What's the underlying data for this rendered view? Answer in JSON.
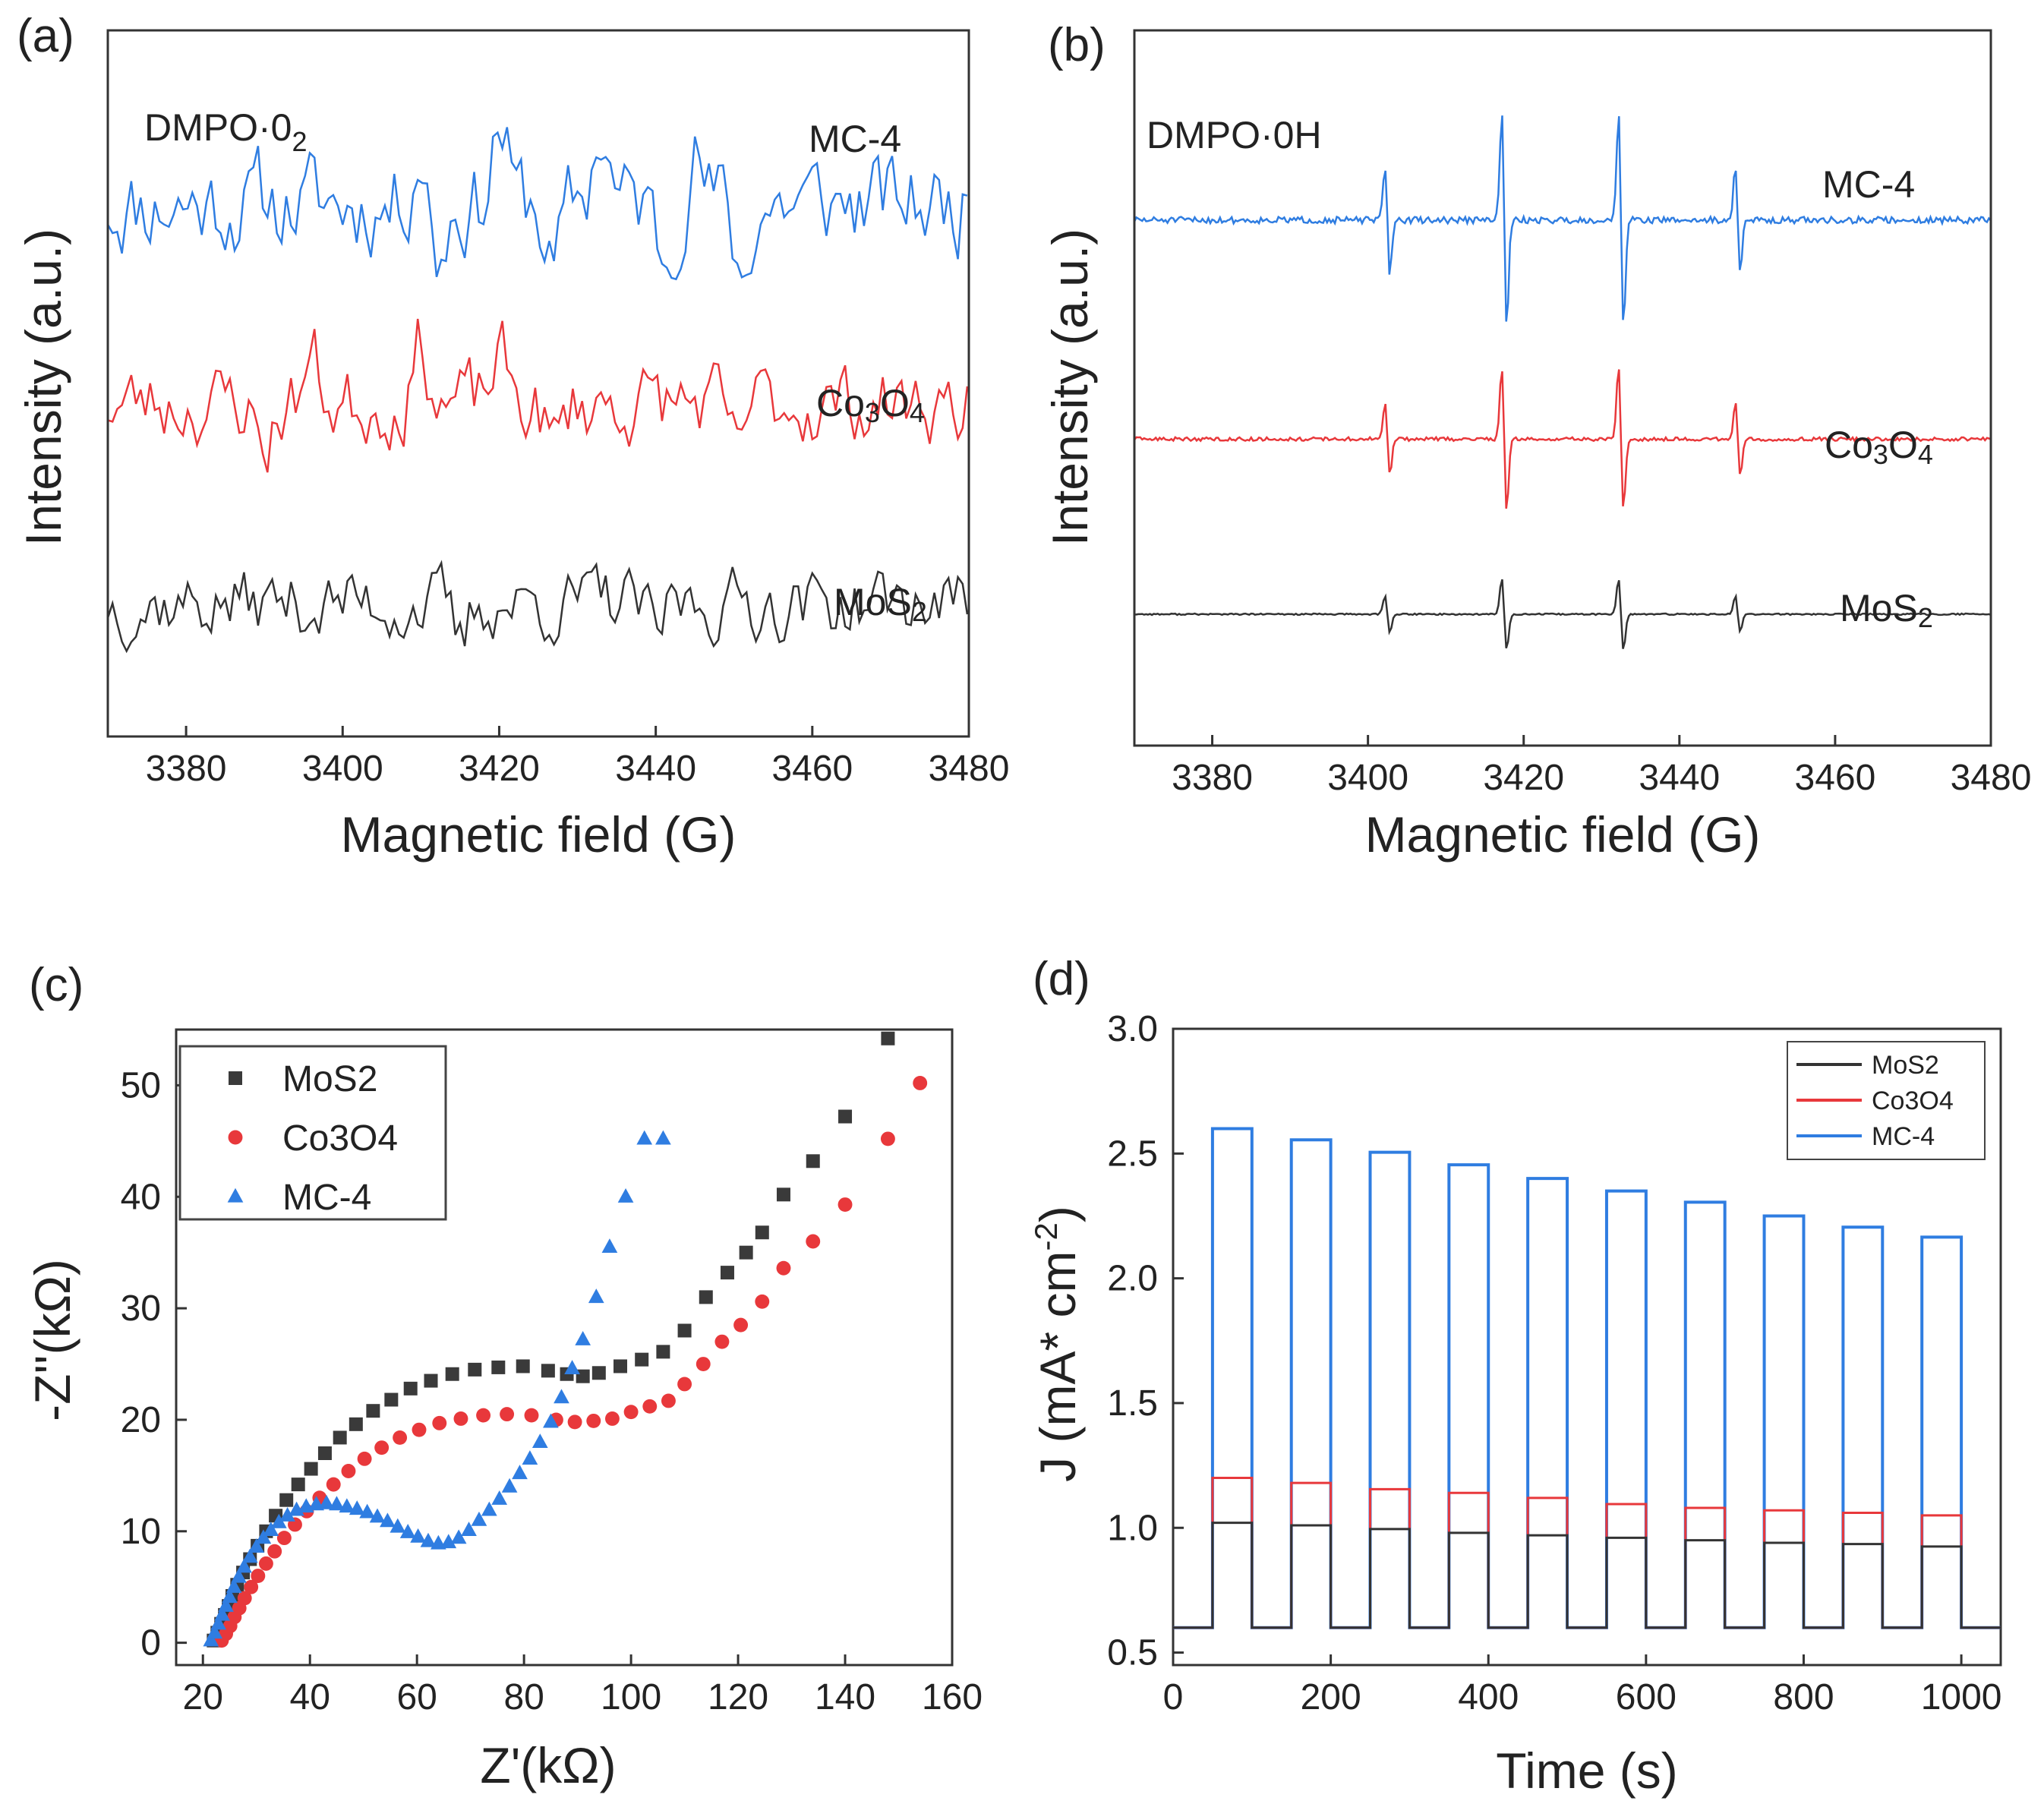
{
  "chart_data": [
    {
      "panel": "(a)",
      "type": "line",
      "title": "",
      "annotation": {
        "base": "DMPO·0",
        "sub": "2"
      },
      "xlabel": "Magnetic field (G)",
      "ylabel": "Intensity (a.u.)",
      "xlim": [
        3370,
        3480
      ],
      "xticks": [
        3380,
        3400,
        3420,
        3440,
        3460,
        3480
      ],
      "grid": false,
      "series": [
        {
          "name": "MC-4",
          "label": {
            "text": "MC-4"
          },
          "color": "#2f7de1",
          "offset": 3.0,
          "amp": 0.55,
          "seed": 11,
          "features": [
            [
              3410,
              0.9
            ],
            [
              3412,
              -0.8
            ],
            [
              3420,
              1.1
            ],
            [
              3427,
              -0.9
            ],
            [
              3433,
              1.0
            ],
            [
              3441,
              -0.7
            ],
            [
              3445,
              0.7
            ],
            [
              3451,
              -1.0
            ]
          ]
        },
        {
          "name": "Co3O4",
          "label": {
            "base": "Co",
            "s1": "3",
            "mid": "O",
            "s2": "4"
          },
          "color": "#e8383b",
          "offset": 1.5,
          "amp": 0.45,
          "seed": 23,
          "features": [
            [
              3390,
              -0.6
            ],
            [
              3396,
              0.6
            ],
            [
              3410,
              0.8
            ],
            [
              3420,
              0.6
            ],
            [
              3427,
              -0.6
            ],
            [
              3450,
              -0.7
            ]
          ]
        },
        {
          "name": "MoS2",
          "label": {
            "base": "MoS",
            "s1": "2"
          },
          "color": "#333333",
          "offset": 0.0,
          "amp": 0.4,
          "seed": 37,
          "features": [
            [
              3415,
              -0.6
            ],
            [
              3440,
              -0.5
            ]
          ]
        }
      ]
    },
    {
      "panel": "(b)",
      "type": "line",
      "title": "",
      "annotation": {
        "base": "DMPO·0H"
      },
      "xlabel": "Magnetic field (G)",
      "ylabel": "Intensity (a.u.)",
      "xlim": [
        3370,
        3480
      ],
      "xticks": [
        3380,
        3400,
        3420,
        3440,
        3460,
        3480
      ],
      "grid": false,
      "peak_centers": [
        3402.5,
        3417.5,
        3432.5,
        3447.5
      ],
      "peak_weights": [
        1,
        2,
        2,
        1
      ],
      "series": [
        {
          "name": "MC-4",
          "label": {
            "text": "MC-4"
          },
          "color": "#2f7de1",
          "baseline": 3.0,
          "scale": 0.75,
          "noise": 0.03,
          "seed": 51
        },
        {
          "name": "Co3O4",
          "label": {
            "base": "Co",
            "s1": "3",
            "mid": "O",
            "s2": "4"
          },
          "color": "#e8383b",
          "baseline": 1.5,
          "scale": 0.5,
          "noise": 0.025,
          "seed": 63
        },
        {
          "name": "MoS2",
          "label": {
            "base": "MoS",
            "s1": "2"
          },
          "color": "#333333",
          "baseline": 0.3,
          "scale": 0.25,
          "noise": 0.02,
          "seed": 77
        }
      ]
    },
    {
      "panel": "(c)",
      "type": "scatter",
      "title": "",
      "xlabel": "Z'(kΩ)",
      "ylabel": "-Z''(kΩ)",
      "xlim": [
        15,
        160
      ],
      "ylim": [
        -2,
        55
      ],
      "xticks": [
        20,
        40,
        60,
        80,
        100,
        120,
        140,
        160
      ],
      "yticks": [
        0,
        10,
        20,
        30,
        40,
        50
      ],
      "legend": "top-left",
      "grid": false,
      "series": [
        {
          "name": "MoS2",
          "marker": "square",
          "color": "#3a3a3a",
          "x": [
            22,
            22.7,
            23.4,
            24.1,
            24.8,
            25.5,
            26.4,
            27.5,
            28.8,
            30.2,
            31.8,
            33.6,
            35.6,
            37.8,
            40.2,
            42.8,
            45.6,
            48.6,
            51.8,
            55.2,
            58.8,
            62.6,
            66.6,
            70.8,
            75.2,
            79.8,
            84.5,
            88.0,
            91.0,
            94.0,
            98.0,
            102.0,
            106.0,
            110.0,
            114.0,
            118.0,
            121.5,
            124.5,
            128.5,
            134.0,
            140.0,
            148.0
          ],
          "y": [
            0.2,
            0.9,
            1.7,
            2.5,
            3.3,
            4.2,
            5.2,
            6.3,
            7.5,
            8.7,
            10.0,
            11.4,
            12.8,
            14.2,
            15.6,
            17.0,
            18.4,
            19.6,
            20.8,
            21.8,
            22.8,
            23.5,
            24.1,
            24.5,
            24.7,
            24.8,
            24.4,
            24.1,
            23.9,
            24.2,
            24.8,
            25.4,
            26.1,
            28.0,
            31.0,
            33.2,
            35.0,
            36.8,
            40.2,
            43.2,
            47.2,
            54.2
          ]
        },
        {
          "name": "Co3O4",
          "marker": "circle",
          "color": "#e8383b",
          "x": [
            23.5,
            24.3,
            25.1,
            25.9,
            26.8,
            27.8,
            29.0,
            30.3,
            31.8,
            33.4,
            35.2,
            37.2,
            39.4,
            41.8,
            44.4,
            47.2,
            50.2,
            53.4,
            56.8,
            60.4,
            64.2,
            68.2,
            72.4,
            76.8,
            81.4,
            86.0,
            89.5,
            93.0,
            96.5,
            100.0,
            103.5,
            107.0,
            110.0,
            113.5,
            117.0,
            120.5,
            124.5,
            128.5,
            134.0,
            140.0,
            148.0,
            154.0
          ],
          "y": [
            0.2,
            0.8,
            1.5,
            2.3,
            3.1,
            4.0,
            5.0,
            6.0,
            7.1,
            8.2,
            9.4,
            10.6,
            11.8,
            13.0,
            14.2,
            15.4,
            16.5,
            17.5,
            18.4,
            19.1,
            19.7,
            20.1,
            20.4,
            20.5,
            20.4,
            20.0,
            19.8,
            19.9,
            20.1,
            20.7,
            21.2,
            21.7,
            23.2,
            25.0,
            27.0,
            28.5,
            30.6,
            33.6,
            36.0,
            39.3,
            45.2,
            50.2
          ]
        },
        {
          "name": "MC-4",
          "marker": "triangle",
          "color": "#2f7de1",
          "x": [
            21.5,
            22.2,
            22.9,
            23.6,
            24.3,
            25.0,
            25.8,
            26.7,
            27.7,
            28.8,
            30.0,
            31.3,
            32.7,
            34.2,
            35.8,
            37.5,
            39.3,
            41.2,
            43.1,
            45.0,
            46.9,
            48.8,
            50.7,
            52.6,
            54.5,
            56.4,
            58.3,
            60.2,
            62.1,
            64.0,
            65.9,
            67.8,
            69.7,
            71.6,
            73.5,
            75.4,
            77.3,
            79.2,
            81.1,
            83.0,
            85.0,
            87.0,
            89.0,
            91.0,
            93.5,
            96.0,
            99.0,
            102.5,
            106.0
          ],
          "y": [
            0.2,
            0.9,
            1.7,
            2.5,
            3.3,
            4.1,
            5.0,
            5.9,
            6.8,
            7.7,
            8.6,
            9.4,
            10.1,
            10.8,
            11.4,
            11.9,
            12.2,
            12.4,
            12.5,
            12.4,
            12.2,
            12.0,
            11.7,
            11.3,
            10.9,
            10.4,
            9.9,
            9.5,
            9.1,
            8.9,
            9.0,
            9.4,
            10.1,
            11.0,
            11.9,
            12.9,
            14.0,
            15.2,
            16.5,
            18.0,
            19.8,
            22.0,
            24.6,
            27.2,
            31.0,
            35.5,
            40.0,
            45.2,
            45.2
          ]
        }
      ]
    },
    {
      "panel": "(d)",
      "type": "line",
      "title": "",
      "xlabel": "Time (s)",
      "ylabel": "J (mA* cm-2)",
      "ylabel_parts": {
        "base": "J (mA* cm",
        "sup": "-2",
        "end": ")"
      },
      "xlim": [
        0,
        1050
      ],
      "ylim": [
        0.45,
        3.0
      ],
      "xticks": [
        0,
        200,
        400,
        600,
        800,
        1000
      ],
      "yticks": [
        0.5,
        1.0,
        1.5,
        2.0,
        2.5,
        3.0
      ],
      "ytick_labels": [
        "0.5",
        "1.0",
        "1.5",
        "2.0",
        "2.5",
        "3.0"
      ],
      "legend": "top-right",
      "grid": false,
      "on_start_times": [
        50,
        150,
        250,
        350,
        450,
        550,
        650,
        750,
        850,
        950
      ],
      "on_duration": 50,
      "dark_current": 0.6,
      "x_end": 1050,
      "series": [
        {
          "name": "MoS2",
          "color": "#333333",
          "on_values": [
            1.02,
            1.01,
            0.995,
            0.98,
            0.97,
            0.96,
            0.95,
            0.94,
            0.935,
            0.925
          ]
        },
        {
          "name": "Co3O4",
          "color": "#e8383b",
          "on_values": [
            1.2,
            1.18,
            1.155,
            1.14,
            1.12,
            1.095,
            1.08,
            1.07,
            1.06,
            1.05
          ]
        },
        {
          "name": "MC-4",
          "color": "#2f7de1",
          "on_values": [
            2.6,
            2.555,
            2.505,
            2.455,
            2.4,
            2.35,
            2.305,
            2.25,
            2.205,
            2.165
          ]
        }
      ]
    }
  ]
}
